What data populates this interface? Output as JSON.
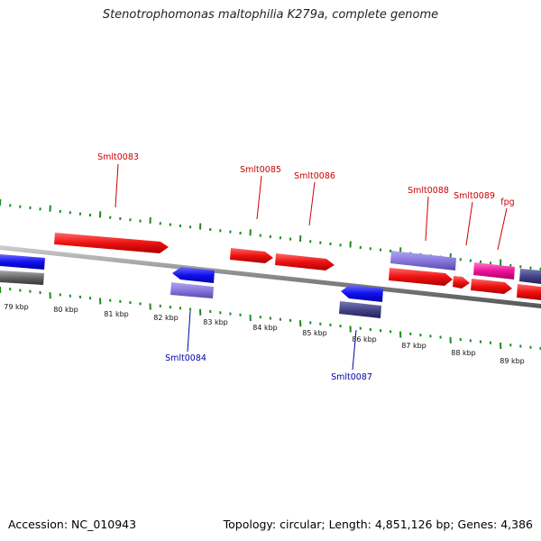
{
  "title": "Stenotrophomonas maltophilia K279a, complete genome",
  "footer": {
    "accession": "Accession: NC_010943",
    "summary": "Topology: circular; Length: 4,851,126 bp; Genes: 4,386"
  },
  "colors": {
    "background": "#ffffff",
    "backbone": "#888888",
    "tick": "#1d8a1d",
    "gene_plus_label": "#cc0000",
    "gene_minus_label": "#0000aa",
    "red_gene": "#ee1111",
    "blue_gene": "#1111ee",
    "lavender_gene": "#8877dd",
    "navy_gene": "#444488",
    "magenta_gene": "#ee1199",
    "gray_gene": "#666666"
  },
  "scale": {
    "unit": "kbp",
    "labels": [
      "79 kbp",
      "80 kbp",
      "81 kbp",
      "82 kbp",
      "83 kbp",
      "84 kbp",
      "85 kbp",
      "86 kbp",
      "87 kbp",
      "88 kbp",
      "89 kbp"
    ]
  },
  "gene_labels": {
    "plus": [
      "Smlt0083",
      "Smlt0085",
      "Smlt0086",
      "Smlt0088",
      "Smlt0089",
      "fpg"
    ],
    "minus": [
      "Smlt0084",
      "Smlt0087"
    ]
  }
}
